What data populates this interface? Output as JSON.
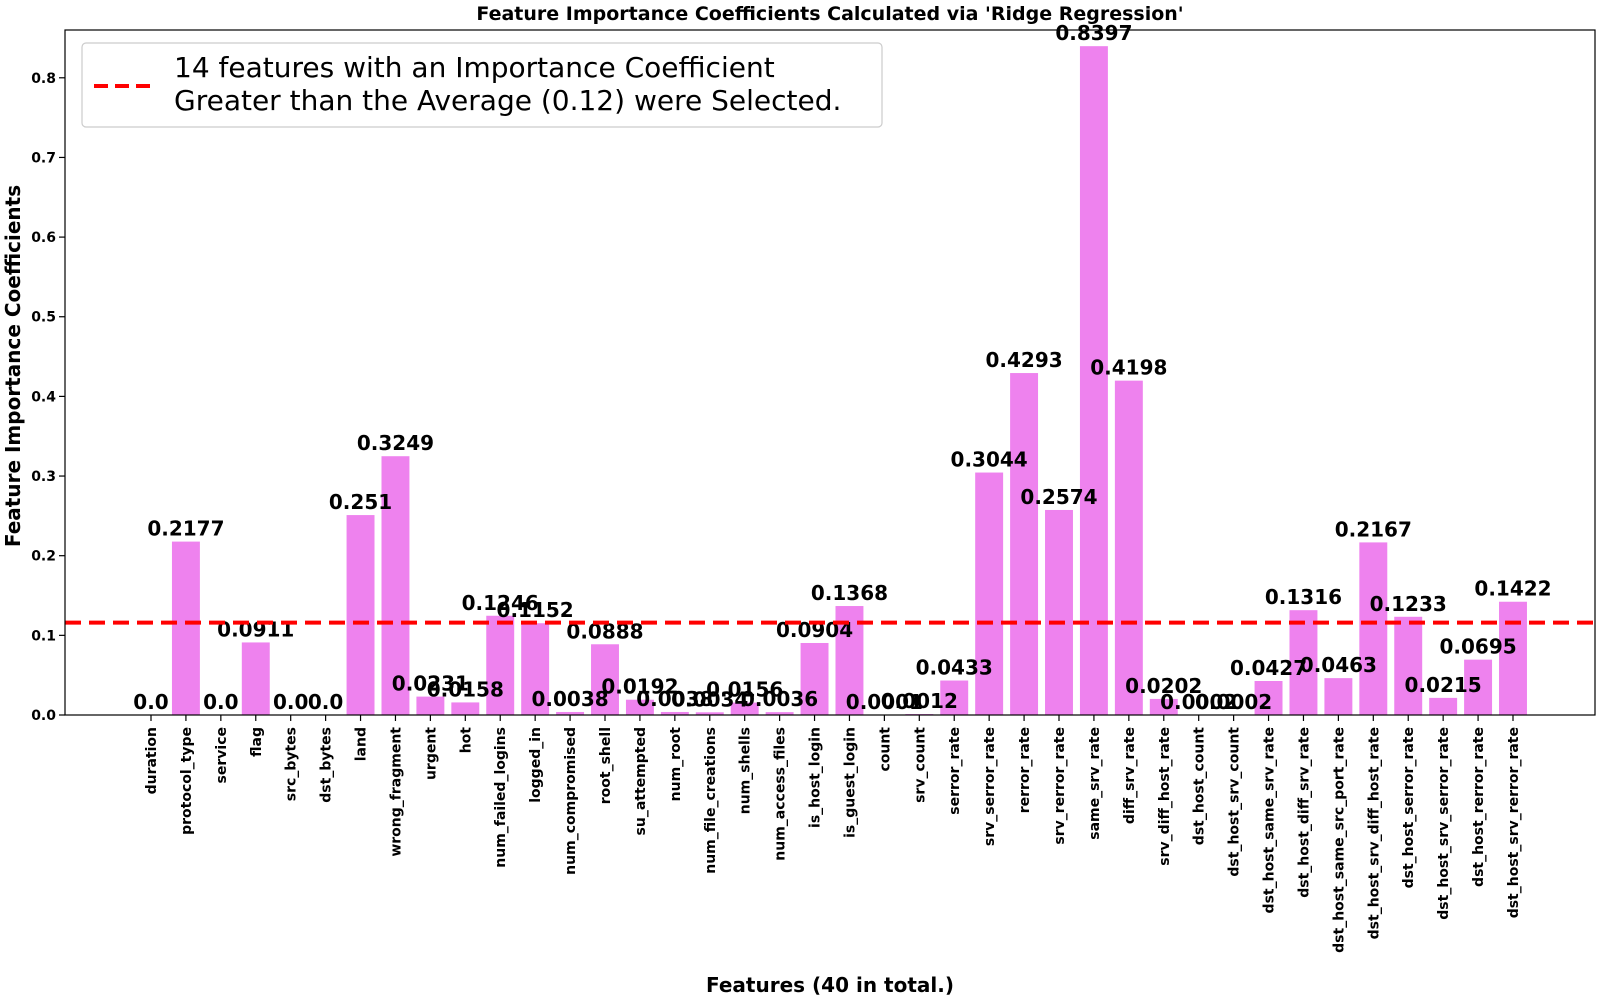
{
  "chart_data": {
    "type": "bar",
    "title": "Feature Importance Coefficients Calculated via 'Ridge Regression'",
    "xlabel": "Features (40 in total.)",
    "ylabel": "Feature Importance Coefficients",
    "ylim": [
      0,
      0.86
    ],
    "yticks": [
      "0.0",
      "0.1",
      "0.2",
      "0.3",
      "0.4",
      "0.5",
      "0.6",
      "0.7",
      "0.8"
    ],
    "bar_color": "#ee82ee",
    "threshold": {
      "value": 0.116,
      "color": "#ff0000",
      "style": "dashed",
      "legend_line1": "14 features with an Importance Coefficient",
      "legend_line2": "Greater than the Average (0.12) were Selected."
    },
    "legend_position": "top-left",
    "categories": [
      "duration",
      "protocol_type",
      "service",
      "flag",
      "src_bytes",
      "dst_bytes",
      "land",
      "wrong_fragment",
      "urgent",
      "hot",
      "num_failed_logins",
      "logged_in",
      "num_compromised",
      "root_shell",
      "su_attempted",
      "num_root",
      "num_file_creations",
      "num_shells",
      "num_access_files",
      "is_host_login",
      "is_guest_login",
      "count",
      "srv_count",
      "serror_rate",
      "srv_serror_rate",
      "rerror_rate",
      "srv_rerror_rate",
      "same_srv_rate",
      "diff_srv_rate",
      "srv_diff_host_rate",
      "dst_host_count",
      "dst_host_srv_count",
      "dst_host_same_srv_rate",
      "dst_host_diff_srv_rate",
      "dst_host_same_src_port_rate",
      "dst_host_srv_diff_host_rate",
      "dst_host_serror_rate",
      "dst_host_srv_serror_rate",
      "dst_host_rerror_rate",
      "dst_host_srv_rerror_rate"
    ],
    "values": [
      0.0,
      0.2177,
      0.0,
      0.0911,
      0.0,
      0.0,
      0.251,
      0.3249,
      0.0231,
      0.0158,
      0.1246,
      0.1152,
      0.0038,
      0.0888,
      0.0192,
      0.0038,
      0.0034,
      0.0156,
      0.0036,
      0.0904,
      0.1368,
      0.0001,
      0.0012,
      0.0433,
      0.3044,
      0.4293,
      0.2574,
      0.8397,
      0.4198,
      0.0202,
      0.0002,
      0.0002,
      0.0427,
      0.1316,
      0.0463,
      0.2167,
      0.1233,
      0.0215,
      0.0695,
      0.1422
    ],
    "value_labels": [
      "0.0",
      "0.2177",
      "0.0",
      "0.0911",
      "0.0",
      "0.0",
      "0.251",
      "0.3249",
      "0.0231",
      "0.0158",
      "0.1246",
      "0.1152",
      "0.0038",
      "0.0888",
      "0.0192",
      "0.0038",
      "0.0034",
      "0.0156",
      "0.0036",
      "0.0904",
      "0.1368",
      "0.0001",
      "0.0012",
      "0.0433",
      "0.3044",
      "0.4293",
      "0.2574",
      "0.8397",
      "0.4198",
      "0.0202",
      "0.0002",
      "0.0002",
      "0.0427",
      "0.1316",
      "0.0463",
      "0.2167",
      "0.1233",
      "0.0215",
      "0.0695",
      "0.1422"
    ]
  }
}
